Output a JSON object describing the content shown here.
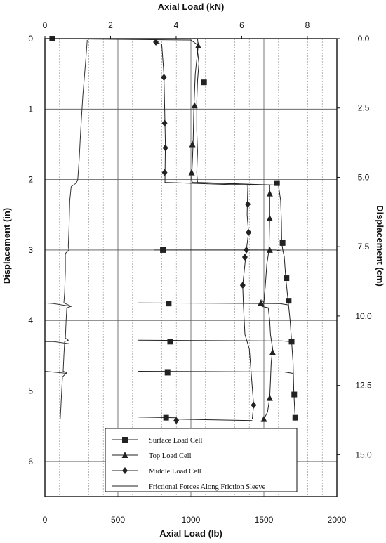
{
  "chart_data": {
    "type": "line",
    "top_axis": {
      "label": "Axial Load (kN)",
      "range": [
        0,
        8.9
      ],
      "ticks": [
        {
          "v": 0,
          "label": "0"
        },
        {
          "v": 2,
          "label": "2"
        },
        {
          "v": 4,
          "label": "4"
        },
        {
          "v": 6,
          "label": "6"
        },
        {
          "v": 8,
          "label": "8"
        }
      ]
    },
    "bottom_axis": {
      "label": "Axial Load (lb)",
      "range": [
        0,
        2000
      ],
      "ticks": [
        {
          "v": 0,
          "label": "0"
        },
        {
          "v": 500,
          "label": "500"
        },
        {
          "v": 1000,
          "label": "1000"
        },
        {
          "v": 1500,
          "label": "1500"
        },
        {
          "v": 2000,
          "label": "2000"
        }
      ]
    },
    "left_axis": {
      "label": "Displacement (in)",
      "range": [
        0,
        6.5
      ],
      "inverted": true,
      "ticks": [
        {
          "v": 0,
          "label": "0"
        },
        {
          "v": 1,
          "label": "1"
        },
        {
          "v": 2,
          "label": "2"
        },
        {
          "v": 3,
          "label": "3"
        },
        {
          "v": 4,
          "label": "4"
        },
        {
          "v": 5,
          "label": "5"
        },
        {
          "v": 6,
          "label": "6"
        }
      ]
    },
    "right_axis": {
      "label": "Displacement (cm)",
      "ticks": [
        {
          "v": 0,
          "label": "0.0"
        },
        {
          "v": 2.5,
          "label": "2.5"
        },
        {
          "v": 5.0,
          "label": "5.0"
        },
        {
          "v": 7.5,
          "label": "7.5"
        },
        {
          "v": 10.0,
          "label": "10.0"
        },
        {
          "v": 12.5,
          "label": "12.5"
        },
        {
          "v": 15.0,
          "label": "15.0"
        }
      ]
    },
    "grid": {
      "major_x": true,
      "major_y": true,
      "minor_x": true
    },
    "legend_position": "bottom-right",
    "series": [
      {
        "name": "Surface Load Cell",
        "marker": "square",
        "color": "#222222",
        "points": [
          [
            30,
            0
          ],
          [
            1000,
            0.02
          ],
          [
            1040,
            0.08
          ],
          [
            1060,
            0.3
          ],
          [
            1050,
            0.6
          ],
          [
            1045,
            1.0
          ],
          [
            1040,
            1.5
          ],
          [
            1040,
            2.0
          ],
          [
            1050,
            2.04
          ],
          [
            1590,
            2.08
          ],
          [
            1620,
            2.3
          ],
          [
            1620,
            2.7
          ],
          [
            1625,
            2.95
          ],
          [
            1640,
            3.1
          ],
          [
            1655,
            3.4
          ],
          [
            1670,
            3.7
          ],
          [
            1680,
            4.0
          ],
          [
            1690,
            4.4
          ],
          [
            1700,
            4.8
          ],
          [
            1705,
            5.1
          ],
          [
            1712,
            5.3
          ],
          [
            1718,
            5.42
          ]
        ],
        "segments": [
          [
            [
              30,
              0
            ],
            [
              1000,
              0.02
            ],
            [
              1040,
              0.08
            ],
            [
              1055,
              0.35
            ],
            [
              1045,
              0.6
            ],
            [
              1040,
              0.9
            ],
            [
              1040,
              1.3
            ],
            [
              1045,
              1.6
            ],
            [
              1040,
              1.9
            ],
            [
              1045,
              2.04
            ],
            [
              1600,
              2.08
            ],
            [
              1615,
              2.3
            ],
            [
              1620,
              2.6
            ],
            [
              1622,
              2.9
            ],
            [
              1630,
              3.0
            ],
            [
              1640,
              3.1
            ],
            [
              1650,
              3.4
            ],
            [
              1665,
              3.7
            ],
            [
              1680,
              4.0
            ],
            [
              1690,
              4.3
            ],
            [
              1700,
              4.6
            ],
            [
              1705,
              5.0
            ],
            [
              1712,
              5.3
            ],
            [
              1718,
              5.42
            ]
          ],
          [
            [
              750,
              3.0
            ],
            [
              1580,
              3.0
            ],
            [
              1630,
              3.02
            ]
          ],
          [
            [
              640,
              3.75
            ],
            [
              1610,
              3.76
            ],
            [
              1670,
              3.78
            ]
          ],
          [
            [
              640,
              4.28
            ],
            [
              1620,
              4.29
            ],
            [
              1685,
              4.3
            ]
          ],
          [
            [
              640,
              4.72
            ],
            [
              1640,
              4.73
            ],
            [
              1700,
              4.75
            ]
          ],
          [
            [
              640,
              5.37
            ],
            [
              900,
              5.38
            ]
          ]
        ],
        "markers": [
          [
            50,
            0
          ],
          [
            1090,
            0.62
          ],
          [
            1590,
            2.05
          ],
          [
            1628,
            2.9
          ],
          [
            1655,
            3.4
          ],
          [
            1670,
            3.72
          ],
          [
            1690,
            4.3
          ],
          [
            1708,
            5.05
          ],
          [
            1715,
            5.38
          ],
          [
            808,
            3.0
          ],
          [
            848,
            3.76
          ],
          [
            858,
            4.3
          ],
          [
            840,
            4.74
          ],
          [
            830,
            5.38
          ]
        ]
      },
      {
        "name": "Top Load Cell",
        "marker": "triangle",
        "color": "#222222",
        "points": [
          [
            1050,
            0.1
          ],
          [
            1020,
            1.2
          ],
          [
            1005,
            1.9
          ],
          [
            1540,
            2.2
          ],
          [
            1540,
            3.0
          ],
          [
            1485,
            3.7
          ],
          [
            1560,
            4.4
          ],
          [
            1540,
            5.1
          ],
          [
            1500,
            5.4
          ]
        ],
        "segments": [
          [
            [
              1045,
              0.0
            ],
            [
              1050,
              0.1
            ],
            [
              1030,
              0.5
            ],
            [
              1020,
              1.0
            ],
            [
              1015,
              1.5
            ],
            [
              1005,
              2.0
            ],
            [
              1010,
              2.04
            ],
            [
              1540,
              2.08
            ],
            [
              1540,
              2.5
            ],
            [
              1535,
              3.0
            ],
            [
              1520,
              3.2
            ],
            [
              1510,
              3.5
            ],
            [
              1500,
              3.75
            ],
            [
              1485,
              3.7
            ]
          ],
          [
            [
              1485,
              3.8
            ],
            [
              1530,
              3.82
            ],
            [
              1540,
              4.0
            ],
            [
              1545,
              4.2
            ],
            [
              1560,
              4.4
            ],
            [
              1550,
              4.6
            ],
            [
              1545,
              4.85
            ],
            [
              1540,
              5.1
            ],
            [
              1525,
              5.3
            ],
            [
              1500,
              5.4
            ]
          ]
        ],
        "markers": [
          [
            1050,
            0.1
          ],
          [
            1025,
            0.95
          ],
          [
            1010,
            1.5
          ],
          [
            1005,
            1.9
          ],
          [
            1540,
            2.2
          ],
          [
            1540,
            2.55
          ],
          [
            1540,
            3.0
          ],
          [
            1480,
            3.75
          ],
          [
            1560,
            4.45
          ],
          [
            1540,
            5.1
          ],
          [
            1500,
            5.4
          ]
        ]
      },
      {
        "name": "Middle Load Cell",
        "marker": "diamond",
        "color": "#222222",
        "points": [
          [
            760,
            0.05
          ],
          [
            815,
            0.6
          ],
          [
            825,
            1.2
          ],
          [
            820,
            1.9
          ],
          [
            1380,
            2.3
          ],
          [
            1400,
            2.8
          ],
          [
            1370,
            3.1
          ],
          [
            1355,
            3.5
          ],
          [
            1430,
            5.2
          ]
        ],
        "segments": [
          [
            [
              750,
              0.05
            ],
            [
              800,
              0.08
            ],
            [
              815,
              0.5
            ],
            [
              820,
              1.0
            ],
            [
              825,
              1.5
            ],
            [
              822,
              2.04
            ],
            [
              1390,
              2.08
            ],
            [
              1385,
              2.5
            ],
            [
              1395,
              2.75
            ],
            [
              1380,
              3.0
            ],
            [
              1370,
              3.2
            ],
            [
              1355,
              3.5
            ],
            [
              1360,
              3.8
            ],
            [
              1370,
              4.2
            ],
            [
              1400,
              4.4
            ],
            [
              1430,
              5.2
            ],
            [
              1420,
              5.4
            ]
          ],
          [
            [
              900,
              5.4
            ],
            [
              1420,
              5.42
            ]
          ]
        ],
        "markers": [
          [
            760,
            0.05
          ],
          [
            815,
            0.55
          ],
          [
            820,
            1.2
          ],
          [
            825,
            1.55
          ],
          [
            820,
            1.9
          ],
          [
            1390,
            2.35
          ],
          [
            1395,
            2.75
          ],
          [
            1380,
            3.0
          ],
          [
            1370,
            3.1
          ],
          [
            1355,
            3.5
          ],
          [
            1430,
            5.2
          ],
          [
            900,
            5.42
          ]
        ]
      },
      {
        "name": "Frictional Forces Along Friction Sleeve",
        "marker": "none",
        "color": "#333333",
        "segments": [
          [
            [
              290,
              0.02
            ],
            [
              280,
              0.3
            ],
            [
              260,
              0.8
            ],
            [
              245,
              1.3
            ],
            [
              235,
              1.7
            ],
            [
              225,
              2.0
            ],
            [
              215,
              2.05
            ],
            [
              180,
              2.1
            ],
            [
              170,
              2.3
            ],
            [
              165,
              2.7
            ],
            [
              160,
              2.95
            ],
            [
              165,
              3.0
            ],
            [
              140,
              3.05
            ],
            [
              140,
              3.3
            ],
            [
              135,
              3.6
            ],
            [
              130,
              3.75
            ],
            [
              180,
              3.8
            ],
            [
              150,
              3.82
            ],
            [
              145,
              4.0
            ],
            [
              140,
              4.25
            ],
            [
              160,
              4.28
            ],
            [
              135,
              4.3
            ],
            [
              130,
              4.5
            ],
            [
              125,
              4.72
            ],
            [
              150,
              4.74
            ],
            [
              120,
              4.8
            ],
            [
              115,
              5.0
            ],
            [
              110,
              5.2
            ],
            [
              105,
              5.4
            ]
          ],
          [
            [
              0,
              4.3
            ],
            [
              60,
              4.3
            ],
            [
              165,
              4.33
            ]
          ],
          [
            [
              0,
              4.72
            ],
            [
              50,
              4.73
            ],
            [
              150,
              4.75
            ]
          ],
          [
            [
              0,
              3.75
            ],
            [
              60,
              3.76
            ],
            [
              180,
              3.8
            ]
          ]
        ]
      }
    ],
    "legend": [
      {
        "label": "Surface Load Cell",
        "marker": "square"
      },
      {
        "label": "Top Load Cell",
        "marker": "triangle"
      },
      {
        "label": "Middle Load Cell",
        "marker": "diamond"
      },
      {
        "label": "Frictional Forces Along Friction Sleeve",
        "marker": "none"
      }
    ]
  }
}
